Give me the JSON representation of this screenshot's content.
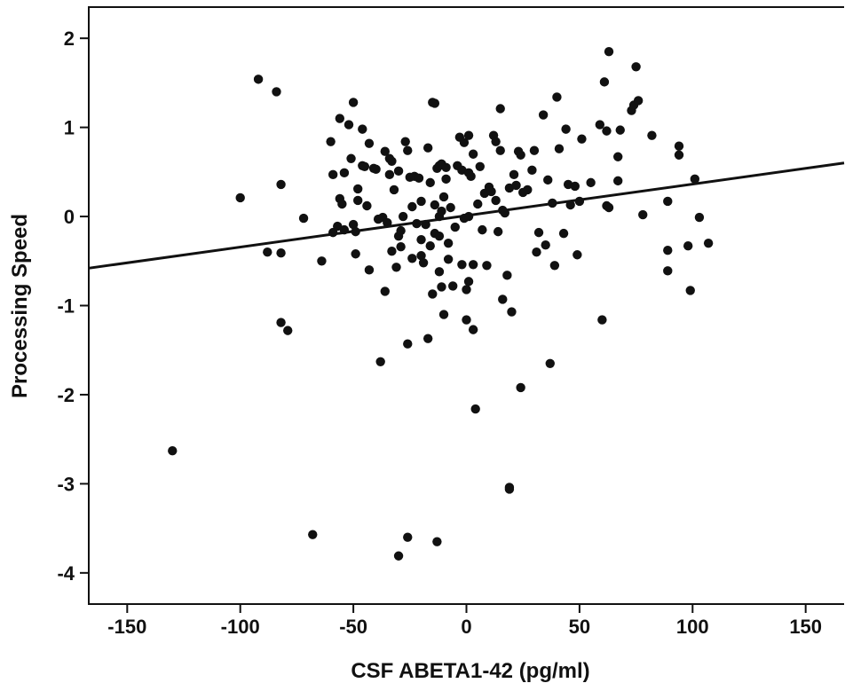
{
  "chart_data": {
    "type": "scatter",
    "title": "",
    "xlabel": "CSF ABETA1-42 (pg/ml)",
    "ylabel": "Processing Speed",
    "xlim": [
      -167,
      167
    ],
    "ylim": [
      -4.35,
      2.35
    ],
    "xticks": [
      -150,
      -100,
      -50,
      0,
      50,
      100,
      150
    ],
    "xtick_labels": [
      "-150",
      "-100",
      "-50",
      "0",
      "50",
      "100",
      "150"
    ],
    "yticks": [
      2,
      1,
      0,
      -1,
      -2,
      -3,
      -4
    ],
    "ytick_labels": [
      "2",
      "1",
      "0",
      "-1",
      "-2",
      "-3",
      "-4"
    ],
    "grid": false,
    "marker_color": "#111111",
    "regression_line": {
      "x": [
        -167,
        167
      ],
      "y": [
        -0.58,
        0.6
      ]
    },
    "points": [
      [
        -130,
        -2.63
      ],
      [
        -100,
        0.21
      ],
      [
        -92,
        1.54
      ],
      [
        -88,
        -0.4
      ],
      [
        -84,
        1.4
      ],
      [
        -82,
        0.36
      ],
      [
        -82,
        -1.19
      ],
      [
        -82,
        -0.41
      ],
      [
        -79,
        -1.28
      ],
      [
        -72,
        -0.02
      ],
      [
        -68,
        -3.57
      ],
      [
        -64,
        -0.5
      ],
      [
        -60,
        0.84
      ],
      [
        -59,
        0.47
      ],
      [
        -59,
        -0.18
      ],
      [
        -57,
        -0.11
      ],
      [
        -56,
        1.1
      ],
      [
        -56,
        0.2
      ],
      [
        -55,
        0.14
      ],
      [
        -54,
        -0.15
      ],
      [
        -54,
        0.49
      ],
      [
        -52,
        1.03
      ],
      [
        -51,
        0.65
      ],
      [
        -50,
        1.28
      ],
      [
        -50,
        -0.09
      ],
      [
        -49,
        -0.42
      ],
      [
        -49,
        -0.17
      ],
      [
        -48,
        0.31
      ],
      [
        -48,
        0.18
      ],
      [
        -46,
        0.98
      ],
      [
        -46,
        0.57
      ],
      [
        -45,
        0.56
      ],
      [
        -44,
        0.12
      ],
      [
        -43,
        -0.6
      ],
      [
        -43,
        0.82
      ],
      [
        -41,
        0.54
      ],
      [
        -40,
        0.53
      ],
      [
        -39,
        -0.03
      ],
      [
        -38,
        -1.63
      ],
      [
        -37,
        -0.01
      ],
      [
        -36,
        -0.84
      ],
      [
        -36,
        0.73
      ],
      [
        -35,
        -0.07
      ],
      [
        -34,
        0.65
      ],
      [
        -34,
        0.47
      ],
      [
        -33,
        0.62
      ],
      [
        -33,
        -0.39
      ],
      [
        -32,
        0.3
      ],
      [
        -31,
        -0.57
      ],
      [
        -30,
        -3.81
      ],
      [
        -30,
        -0.22
      ],
      [
        -30,
        0.51
      ],
      [
        -29,
        -0.16
      ],
      [
        -29,
        -0.34
      ],
      [
        -28,
        0.0
      ],
      [
        -27,
        0.84
      ],
      [
        -26,
        0.74
      ],
      [
        -26,
        -1.43
      ],
      [
        -26,
        -3.6
      ],
      [
        -25,
        0.44
      ],
      [
        -24,
        0.11
      ],
      [
        -24,
        -0.47
      ],
      [
        -23,
        0.45
      ],
      [
        -22,
        -0.08
      ],
      [
        -21,
        0.43
      ],
      [
        -20,
        0.17
      ],
      [
        -20,
        -0.26
      ],
      [
        -20,
        -0.44
      ],
      [
        -19,
        -0.52
      ],
      [
        -18,
        -0.09
      ],
      [
        -17,
        0.77
      ],
      [
        -17,
        -1.37
      ],
      [
        -16,
        0.38
      ],
      [
        -16,
        -0.33
      ],
      [
        -15,
        1.28
      ],
      [
        -15,
        -0.87
      ],
      [
        -14,
        1.27
      ],
      [
        -14,
        0.13
      ],
      [
        -14,
        -0.19
      ],
      [
        -13,
        -3.65
      ],
      [
        -13,
        0.54
      ],
      [
        -12,
        0.57
      ],
      [
        -12,
        0.0
      ],
      [
        -12,
        -0.22
      ],
      [
        -12,
        -0.62
      ],
      [
        -11,
        0.59
      ],
      [
        -11,
        0.06
      ],
      [
        -11,
        -0.79
      ],
      [
        -10,
        0.22
      ],
      [
        -10,
        -1.1
      ],
      [
        -9,
        0.55
      ],
      [
        -9,
        0.42
      ],
      [
        -8,
        -0.3
      ],
      [
        -8,
        -0.48
      ],
      [
        -7,
        0.1
      ],
      [
        -6,
        -0.78
      ],
      [
        -5,
        -0.12
      ],
      [
        -4,
        0.57
      ],
      [
        -3,
        0.89
      ],
      [
        -2,
        0.52
      ],
      [
        -2,
        -0.54
      ],
      [
        -1,
        0.83
      ],
      [
        -1,
        -0.02
      ],
      [
        0,
        -0.82
      ],
      [
        0,
        -1.16
      ],
      [
        1,
        0.91
      ],
      [
        1,
        0.49
      ],
      [
        1,
        0.0
      ],
      [
        1,
        -0.73
      ],
      [
        2,
        0.45
      ],
      [
        3,
        0.7
      ],
      [
        3,
        -0.54
      ],
      [
        3,
        -1.27
      ],
      [
        4,
        -2.16
      ],
      [
        5,
        0.14
      ],
      [
        6,
        0.56
      ],
      [
        7,
        -0.15
      ],
      [
        8,
        0.26
      ],
      [
        9,
        -0.55
      ],
      [
        10,
        0.33
      ],
      [
        11,
        0.28
      ],
      [
        12,
        0.91
      ],
      [
        13,
        0.84
      ],
      [
        13,
        0.18
      ],
      [
        14,
        -0.17
      ],
      [
        15,
        1.21
      ],
      [
        15,
        0.74
      ],
      [
        16,
        -0.93
      ],
      [
        16,
        0.07
      ],
      [
        17,
        0.04
      ],
      [
        18,
        -0.66
      ],
      [
        19,
        0.32
      ],
      [
        19,
        -3.04
      ],
      [
        19,
        -3.06
      ],
      [
        20,
        -1.07
      ],
      [
        21,
        0.47
      ],
      [
        22,
        0.35
      ],
      [
        23,
        0.73
      ],
      [
        24,
        -1.92
      ],
      [
        24,
        0.69
      ],
      [
        25,
        0.27
      ],
      [
        27,
        0.3
      ],
      [
        29,
        0.52
      ],
      [
        30,
        0.74
      ],
      [
        31,
        -0.4
      ],
      [
        32,
        -0.18
      ],
      [
        34,
        1.14
      ],
      [
        35,
        -0.32
      ],
      [
        36,
        0.41
      ],
      [
        37,
        -1.65
      ],
      [
        38,
        0.15
      ],
      [
        39,
        -0.55
      ],
      [
        40,
        1.34
      ],
      [
        41,
        0.76
      ],
      [
        43,
        -0.19
      ],
      [
        44,
        0.98
      ],
      [
        45,
        0.36
      ],
      [
        46,
        0.13
      ],
      [
        48,
        0.34
      ],
      [
        49,
        -0.43
      ],
      [
        50,
        0.17
      ],
      [
        51,
        0.87
      ],
      [
        55,
        0.38
      ],
      [
        59,
        1.03
      ],
      [
        60,
        -1.16
      ],
      [
        61,
        1.51
      ],
      [
        62,
        0.96
      ],
      [
        62,
        0.12
      ],
      [
        63,
        1.85
      ],
      [
        63,
        0.1
      ],
      [
        67,
        0.67
      ],
      [
        67,
        0.4
      ],
      [
        68,
        0.97
      ],
      [
        73,
        1.19
      ],
      [
        74,
        1.25
      ],
      [
        75,
        1.68
      ],
      [
        76,
        1.3
      ],
      [
        78,
        0.02
      ],
      [
        82,
        0.91
      ],
      [
        89,
        0.17
      ],
      [
        89,
        -0.38
      ],
      [
        89,
        -0.61
      ],
      [
        94,
        0.69
      ],
      [
        94,
        0.79
      ],
      [
        98,
        -0.33
      ],
      [
        99,
        -0.83
      ],
      [
        101,
        0.42
      ],
      [
        103,
        -0.01
      ],
      [
        107,
        -0.3
      ]
    ]
  }
}
